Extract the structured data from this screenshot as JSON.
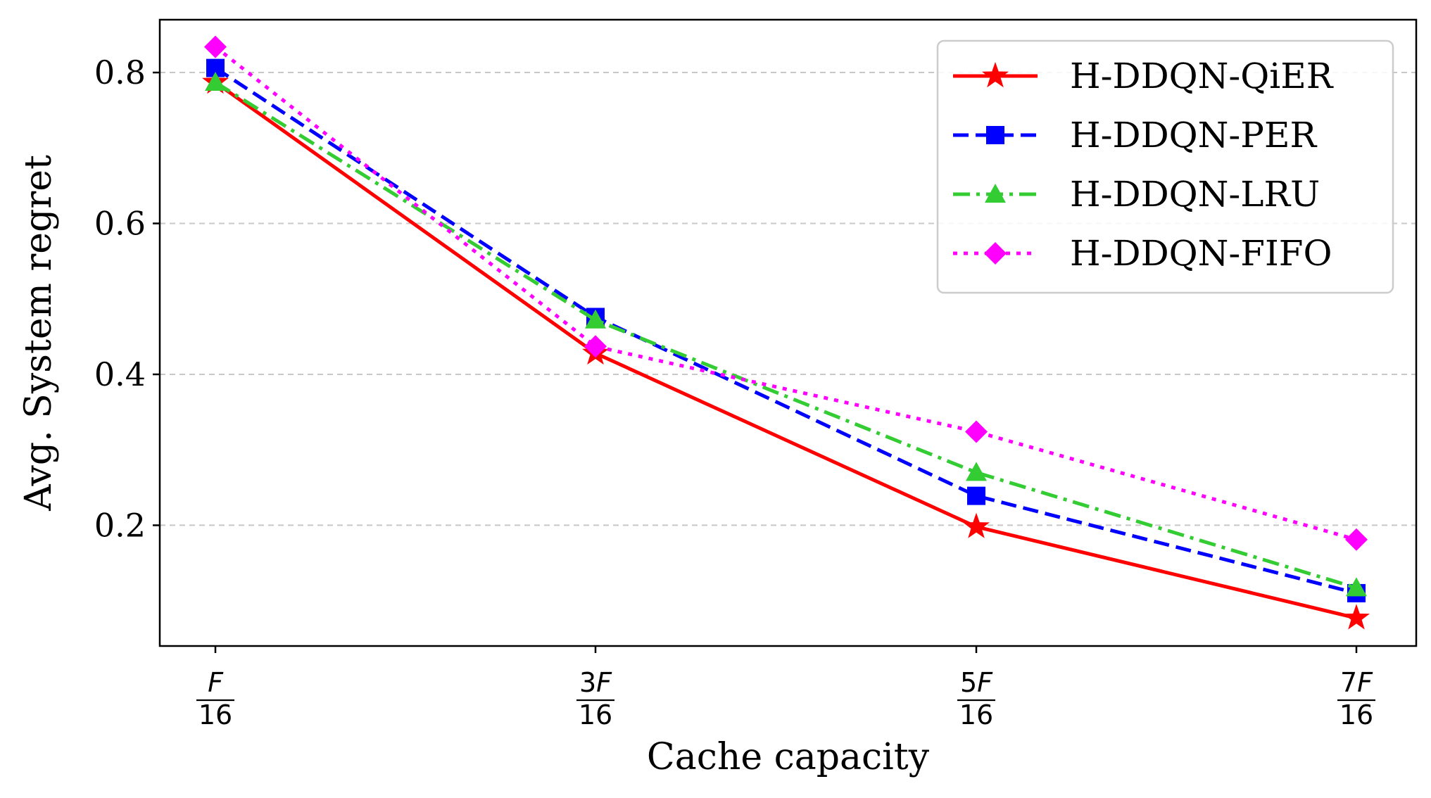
{
  "chart_data": {
    "type": "line",
    "title": "",
    "xlabel": "Cache capacity",
    "ylabel": "Avg. System regret",
    "categories": [
      {
        "num_coef": "",
        "num_var": "F",
        "den": "16"
      },
      {
        "num_coef": "3",
        "num_var": "F",
        "den": "16"
      },
      {
        "num_coef": "5",
        "num_var": "F",
        "den": "16"
      },
      {
        "num_coef": "7",
        "num_var": "F",
        "den": "16"
      }
    ],
    "ylim": [
      0.04,
      0.87
    ],
    "yticks": [
      "0.2",
      "0.4",
      "0.6",
      "0.8"
    ],
    "grid": "y-dashed",
    "legend_position": "top-right",
    "series": [
      {
        "name": "H-DDQN-QiER",
        "color": "#ff0000",
        "dash": "solid",
        "marker": "star",
        "values": [
          0.787,
          0.428,
          0.198,
          0.077
        ]
      },
      {
        "name": "H-DDQN-PER",
        "color": "#0000ff",
        "dash": "dashed",
        "marker": "square",
        "values": [
          0.806,
          0.476,
          0.239,
          0.11
        ]
      },
      {
        "name": "H-DDQN-LRU",
        "color": "#33cc33",
        "dash": "dashdot",
        "marker": "triangle",
        "values": [
          0.787,
          0.472,
          0.27,
          0.117
        ]
      },
      {
        "name": "H-DDQN-FIFO",
        "color": "#ff00ff",
        "dash": "dotted",
        "marker": "diamond",
        "values": [
          0.834,
          0.437,
          0.324,
          0.181
        ]
      }
    ]
  }
}
